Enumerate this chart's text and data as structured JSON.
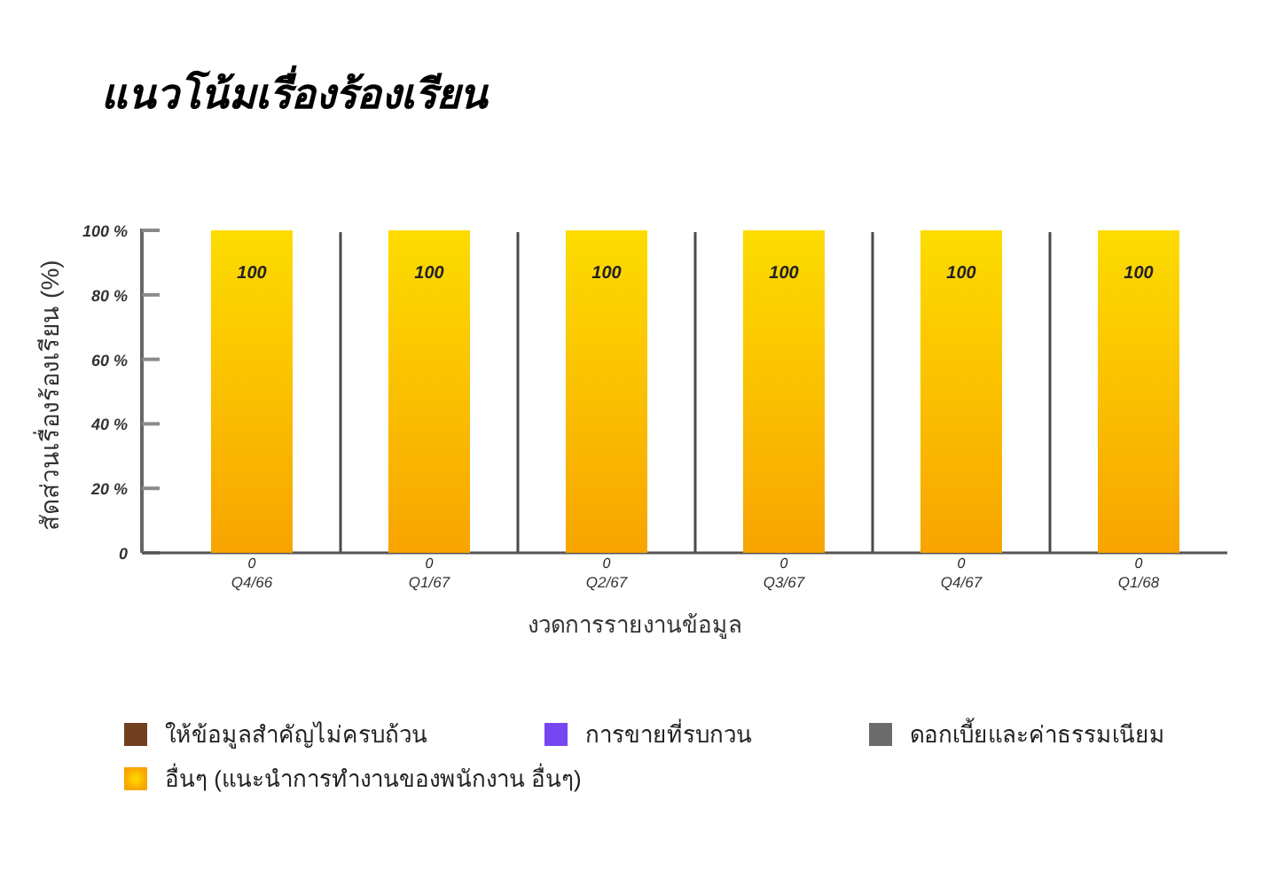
{
  "chart_data": {
    "type": "bar",
    "title": "แนวโน้มเรื่องร้องเรียน",
    "xlabel": "งวดการรายงานข้อมูล",
    "ylabel": "สัดส่วนเรื่องร้องเรียน (%)",
    "categories": [
      "Q4/66",
      "Q1/67",
      "Q2/67",
      "Q3/67",
      "Q4/67",
      "Q1/68"
    ],
    "stacked": true,
    "series": [
      {
        "name": "ให้ข้อมูลสำคัญไม่ครบถ้วน",
        "color": "#6f3f20",
        "values": [
          0,
          0,
          0,
          0,
          0,
          0
        ],
        "value_labels": [
          "0",
          "0",
          "0",
          "0",
          "0",
          "0"
        ]
      },
      {
        "name": "การขายที่รบกวน",
        "color": "#7646f2",
        "values": [
          0,
          0,
          0,
          0,
          0,
          0
        ]
      },
      {
        "name": "ดอกเบี้ยและค่าธรรมเนียม",
        "color": "#6b6b6b",
        "values": [
          0,
          0,
          0,
          0,
          0,
          0
        ]
      },
      {
        "name": "อื่นๆ (แนะนำการทำงานของพนักงาน อื่นๆ)",
        "color": "#f8a400",
        "values": [
          100,
          100,
          100,
          100,
          100,
          100
        ],
        "value_labels": [
          "100",
          "100",
          "100",
          "100",
          "100",
          "100"
        ]
      }
    ],
    "ylim": [
      0,
      100
    ],
    "yticks": [
      0,
      {
        "value": 20,
        "label": "20 %"
      },
      {
        "value": 40,
        "label": "40 %"
      },
      {
        "value": 60,
        "label": "60 %"
      },
      {
        "value": 80,
        "label": "80 %"
      },
      {
        "value": 100,
        "label": "100 %"
      }
    ],
    "grid": "x",
    "legend": "bottom"
  }
}
